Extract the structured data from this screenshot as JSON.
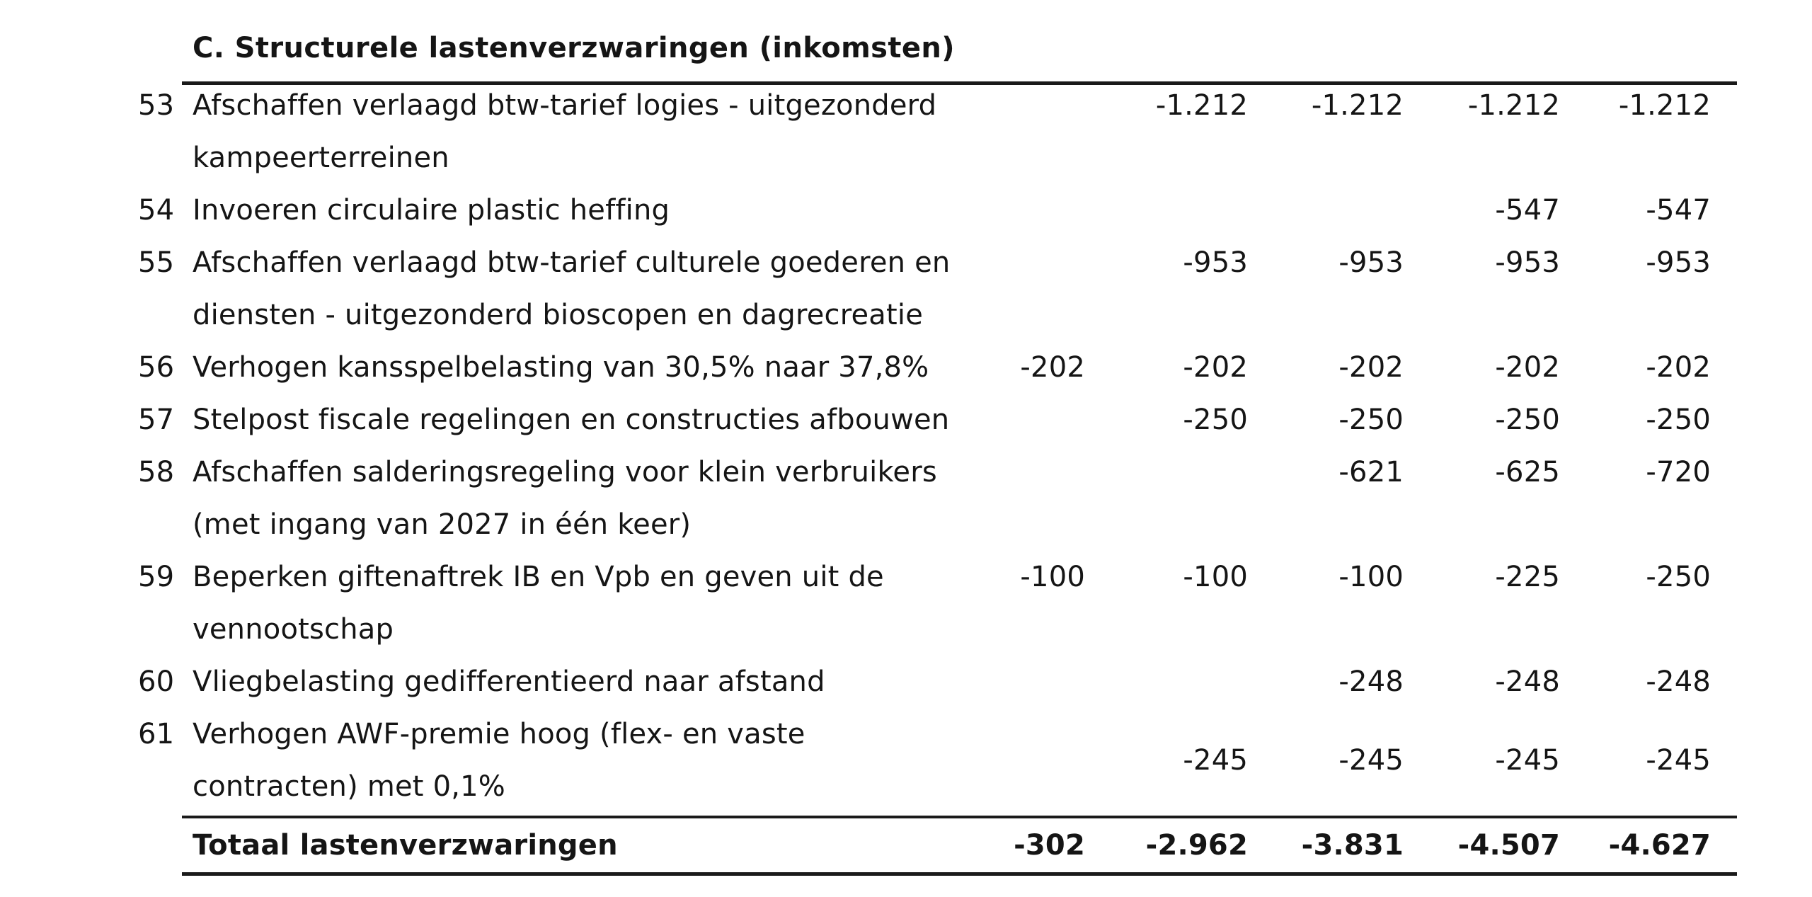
{
  "document": {
    "section_title": "C. Structurele lastenverzwaringen (inkomsten)",
    "colors": {
      "text": "#151515",
      "rule": "#1a1a1a",
      "background": "#ffffff"
    },
    "table": {
      "rows": [
        {
          "num": "53",
          "desc_lines": [
            "Afschaffen verlaagd btw-tarief logies - uitgezonderd",
            "kampeerterreinen"
          ],
          "values": [
            "",
            "-1.212",
            "-1.212",
            "-1.212",
            "-1.212"
          ]
        },
        {
          "num": "54",
          "desc_lines": [
            "Invoeren circulaire plastic heffing"
          ],
          "values": [
            "",
            "",
            "",
            "-547",
            "-547"
          ]
        },
        {
          "num": "55",
          "desc_lines": [
            "Afschaffen verlaagd btw-tarief culturele goederen en",
            "diensten - uitgezonderd bioscopen en dagrecreatie"
          ],
          "values": [
            "",
            "-953",
            "-953",
            "-953",
            "-953"
          ]
        },
        {
          "num": "56",
          "desc_lines": [
            "Verhogen kansspelbelasting van 30,5% naar 37,8%"
          ],
          "values": [
            "-202",
            "-202",
            "-202",
            "-202",
            "-202"
          ]
        },
        {
          "num": "57",
          "desc_lines": [
            "Stelpost fiscale regelingen en constructies afbouwen"
          ],
          "values": [
            "",
            "-250",
            "-250",
            "-250",
            "-250"
          ]
        },
        {
          "num": "58",
          "desc_lines": [
            "Afschaffen salderingsregeling voor klein verbruikers",
            "(met ingang van 2027 in één keer)"
          ],
          "values": [
            "",
            "",
            "-621",
            "-625",
            "-720"
          ]
        },
        {
          "num": "59",
          "desc_lines": [
            "Beperken giftenaftrek IB en Vpb en geven uit de",
            "vennootschap"
          ],
          "values": [
            "-100",
            "-100",
            "-100",
            "-225",
            "-250"
          ]
        },
        {
          "num": "60",
          "desc_lines": [
            "Vliegbelasting gedifferentieerd naar afstand"
          ],
          "values": [
            "",
            "",
            "-248",
            "-248",
            "-248"
          ]
        },
        {
          "num": "61",
          "desc_lines": [
            "Verhogen AWF-premie hoog (flex- en vaste",
            "contracten) met 0,1%"
          ],
          "values": [
            "",
            "-245",
            "-245",
            "-245",
            "-245"
          ],
          "values_align": "center"
        }
      ],
      "total_row": {
        "label": "Totaal lastenverzwaringen",
        "values": [
          "-302",
          "-2.962",
          "-3.831",
          "-4.507",
          "-4.627"
        ]
      }
    }
  }
}
